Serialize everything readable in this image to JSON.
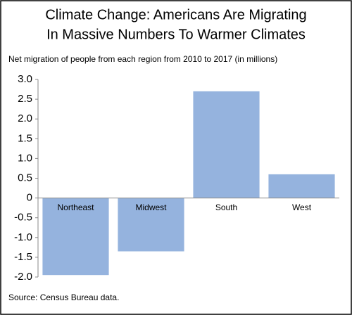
{
  "chart_data": {
    "type": "bar",
    "title_lines": [
      "Climate Change: Americans Are Migrating",
      "In Massive Numbers To Warmer Climates"
    ],
    "subtitle": "Net migration of people from each region from 2010 to 2017 (in millions)",
    "source": "Source: Census Bureau data.",
    "categories": [
      "Northeast",
      "Midwest",
      "South",
      "West"
    ],
    "values": [
      -1.95,
      -1.35,
      2.7,
      0.6
    ],
    "color": "#95b3de",
    "ylim": [
      -2,
      3
    ],
    "yticks": [
      {
        "value": 3,
        "label": "3.0"
      },
      2.5,
      {
        "value": 2,
        "label": "2.0"
      },
      1.5,
      {
        "value": 1,
        "label": "1.0"
      },
      0.5,
      0,
      -0.5,
      {
        "value": -1,
        "label": "-1.0"
      },
      -1.5,
      {
        "value": -2,
        "label": "-2.0"
      }
    ],
    "grid": false
  }
}
